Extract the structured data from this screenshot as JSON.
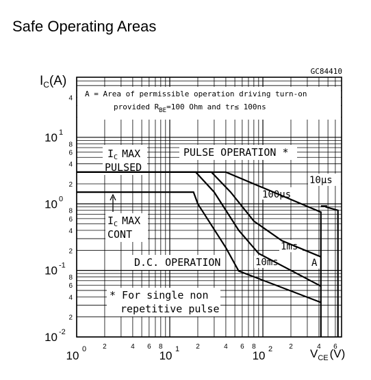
{
  "page": {
    "title": "Safe Operating Areas"
  },
  "chart_data": {
    "type": "line",
    "figure_code": "GC84410",
    "x_axis": {
      "label_main": "V",
      "label_sub": "CE",
      "label_unit": "(V)",
      "scale": "log",
      "range": [
        1,
        700
      ],
      "decade_labels": [
        {
          "value": 1,
          "mantissa": "10",
          "exponent": "0"
        },
        {
          "value": 10,
          "mantissa": "10",
          "exponent": "1"
        },
        {
          "value": 100,
          "mantissa": "10",
          "exponent": "2"
        }
      ],
      "minor_labels": [
        {
          "value": 2,
          "text": "2"
        },
        {
          "value": 4,
          "text": "4"
        },
        {
          "value": 6,
          "text": "6"
        },
        {
          "value": 8,
          "text": "8"
        },
        {
          "value": 20,
          "text": "2"
        },
        {
          "value": 40,
          "text": "4"
        },
        {
          "value": 60,
          "text": "6"
        },
        {
          "value": 80,
          "text": "8"
        },
        {
          "value": 200,
          "text": "2"
        },
        {
          "value": 400,
          "text": "4"
        },
        {
          "value": 600,
          "text": "6"
        }
      ]
    },
    "y_axis": {
      "label_main": "I",
      "label_sub": "C",
      "label_unit": "(A)",
      "scale": "log",
      "range": [
        0.01,
        80
      ],
      "decade_labels": [
        {
          "value": 0.01,
          "mantissa": "10",
          "exponent": "-2"
        },
        {
          "value": 0.1,
          "mantissa": "10",
          "exponent": "-1"
        },
        {
          "value": 1,
          "mantissa": "10",
          "exponent": "0"
        },
        {
          "value": 10,
          "mantissa": "10",
          "exponent": "1"
        }
      ],
      "minor_labels": [
        {
          "value": 0.02,
          "text": "2"
        },
        {
          "value": 0.04,
          "text": "4"
        },
        {
          "value": 0.06,
          "text": "6"
        },
        {
          "value": 0.08,
          "text": "8"
        },
        {
          "value": 0.2,
          "text": "2"
        },
        {
          "value": 0.4,
          "text": "4"
        },
        {
          "value": 0.6,
          "text": "6"
        },
        {
          "value": 0.8,
          "text": "8"
        },
        {
          "value": 2,
          "text": "2"
        },
        {
          "value": 4,
          "text": "4"
        },
        {
          "value": 6,
          "text": "6"
        },
        {
          "value": 8,
          "text": "8"
        },
        {
          "value": 40,
          "text": "4"
        }
      ]
    },
    "grid": true,
    "series": [
      {
        "name": "10µs",
        "points": [
          [
            1,
            3.0
          ],
          [
            40,
            3.0
          ],
          [
            420,
            0.75
          ],
          [
            420,
            0.01
          ]
        ]
      },
      {
        "name": "100µs",
        "points": [
          [
            1,
            3.0
          ],
          [
            28,
            3.0
          ],
          [
            45,
            1.5
          ],
          [
            80,
            0.55
          ],
          [
            160,
            0.28
          ],
          [
            420,
            0.16
          ]
        ]
      },
      {
        "name": "1ms",
        "points": [
          [
            1,
            3.0
          ],
          [
            19,
            3.0
          ],
          [
            30,
            1.5
          ],
          [
            55,
            0.4
          ],
          [
            90,
            0.18
          ],
          [
            420,
            0.058
          ]
        ]
      },
      {
        "name": "10ms",
        "points": [
          [
            1,
            1.5
          ],
          [
            18,
            1.5
          ],
          [
            20,
            1.0
          ],
          [
            40,
            0.22
          ],
          [
            55,
            0.098
          ],
          [
            420,
            0.033
          ]
        ]
      },
      {
        "name": "A",
        "points": [
          [
            470,
            0.9
          ],
          [
            640,
            0.8
          ],
          [
            640,
            0.01
          ]
        ]
      },
      {
        "name": "",
        "points": [
          [
            420,
            0.93
          ],
          [
            490,
            0.93
          ]
        ]
      }
    ],
    "annotations": {
      "area_note_line1": "A = Area of permissible operation driving turn-on",
      "area_note_line2_prefix": "provided R",
      "area_note_line2_sub": "BE",
      "area_note_line2_mid": "=100 Ohm and tr",
      "area_note_line2_leq": "≤",
      "area_note_line2_end": " 100ns",
      "ic_max_pulsed_1": "MAX",
      "ic_max_pulsed_2": "PULSED",
      "ic_max_i": "I",
      "ic_max_sub": "C",
      "ic_max_cont_1": "MAX",
      "ic_max_cont_2": "CONT",
      "pulse_operation": "PULSE OPERATION *",
      "dc_operation": "D.C. OPERATION",
      "footnote_1": "* For single non",
      "footnote_2": "repetitive pulse",
      "label_10us": "10μs",
      "label_100us": "100μs",
      "label_1ms": "1ms",
      "label_10ms": "10ms",
      "label_A": "A"
    }
  }
}
